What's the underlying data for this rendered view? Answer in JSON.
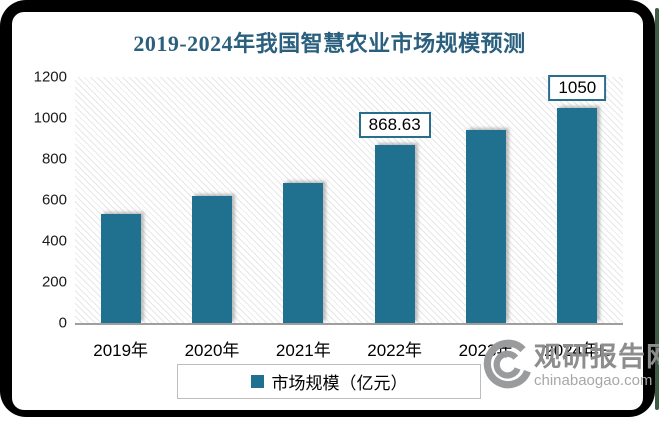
{
  "chart_data": {
    "type": "bar",
    "title": "2019-2024年我国智慧农业市场规模预测",
    "categories": [
      "2019年",
      "2020年",
      "2021年",
      "2022年",
      "2023年",
      "2024年E"
    ],
    "values": [
      530,
      620,
      685,
      868.63,
      940,
      1050
    ],
    "point_labels": [
      "",
      "",
      "",
      "868.63",
      "",
      "1050"
    ],
    "ylim": [
      0,
      1200
    ],
    "yticks": [
      0,
      200,
      400,
      600,
      800,
      1000,
      1200
    ],
    "grid": false,
    "xlabel": "",
    "ylabel": "",
    "legend": {
      "label": "市场规模（亿元）",
      "position": "bottom"
    },
    "bar_color": "#20718f"
  },
  "colors": {
    "title": "#2a5f7e",
    "bar": "#20718f",
    "label_box_border": "#2a6e8e",
    "axis_line": "#9f9f9f",
    "watermark_gray": "#8d8d8d"
  },
  "watermark": {
    "logo": "swirl-logo",
    "name": "观研报告网",
    "url": "chinabaogao.com"
  }
}
